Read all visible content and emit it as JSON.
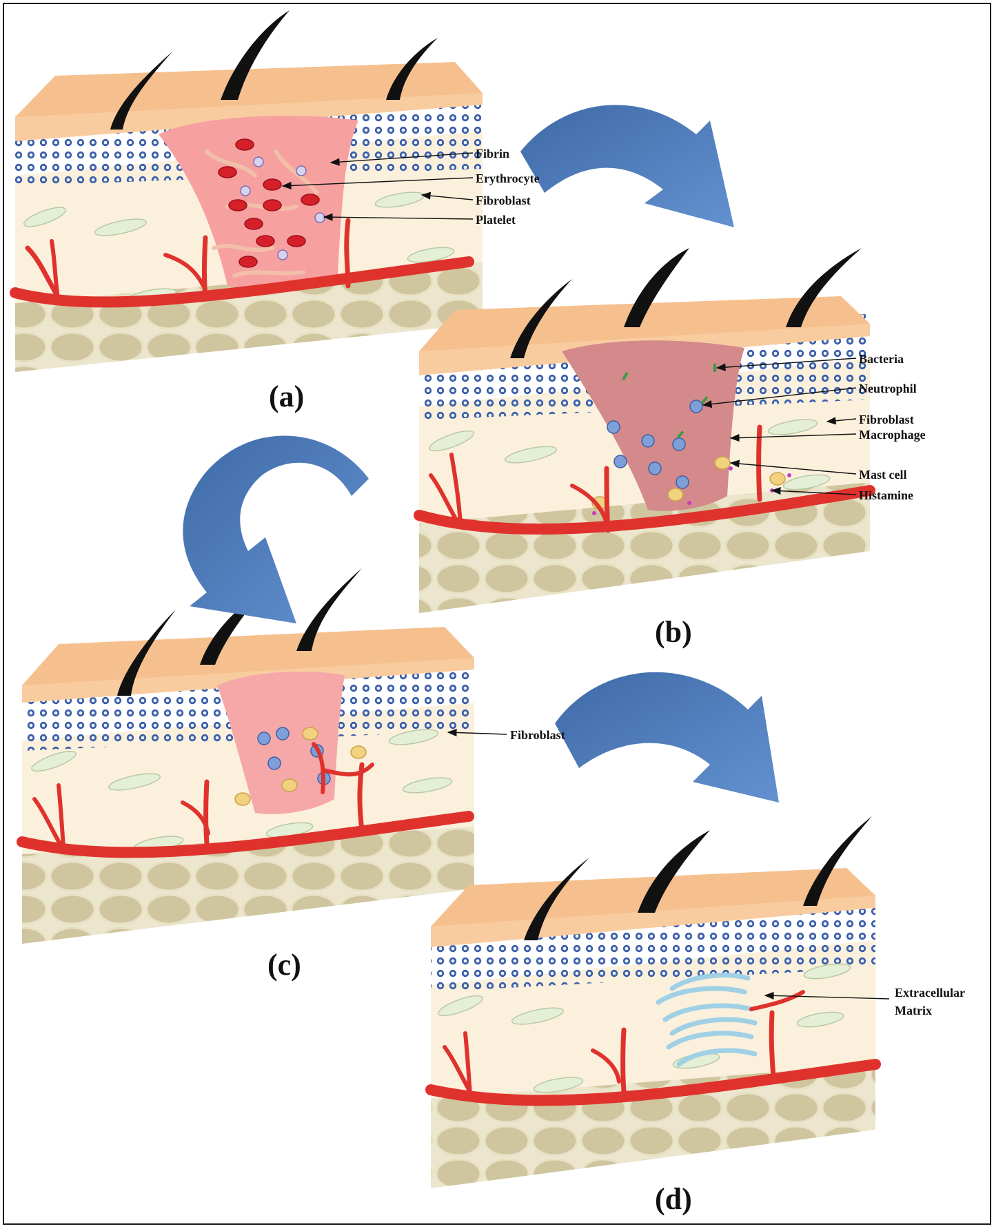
{
  "panels": [
    {
      "id": "a",
      "letter": "(a)",
      "callouts": [
        "Fibrin",
        "Erythrocyte",
        "Fibroblast",
        "Platelet"
      ]
    },
    {
      "id": "b",
      "letter": "(b)",
      "callouts": [
        "Bacteria",
        "Neutrophil",
        "Fibroblast",
        "Macrophage",
        "Mast cell",
        "Histamine"
      ]
    },
    {
      "id": "c",
      "letter": "(c)",
      "callouts": [
        "Fibroblast"
      ]
    },
    {
      "id": "d",
      "letter": "(d)",
      "callouts": [
        "Extracellular",
        "Matrix"
      ]
    }
  ],
  "colors": {
    "epidermis_top": "#f5c08e",
    "epidermis_side": "#f7c99c",
    "dermis": "#fbf0dc",
    "subcutis": "#e9e2c8",
    "fat_cell": "#cfc59e",
    "vessel": "#e0322d",
    "wound_a": "#f6a0a0",
    "wound_b": "#d48a8a",
    "wound_c": "#f6a8a8",
    "arrow": "#4a78b8",
    "hair": "#111111",
    "fibroblast": "#e4efd6",
    "nucleus_ring": "#3b5ea8",
    "ecm": "#9fd0e6"
  }
}
